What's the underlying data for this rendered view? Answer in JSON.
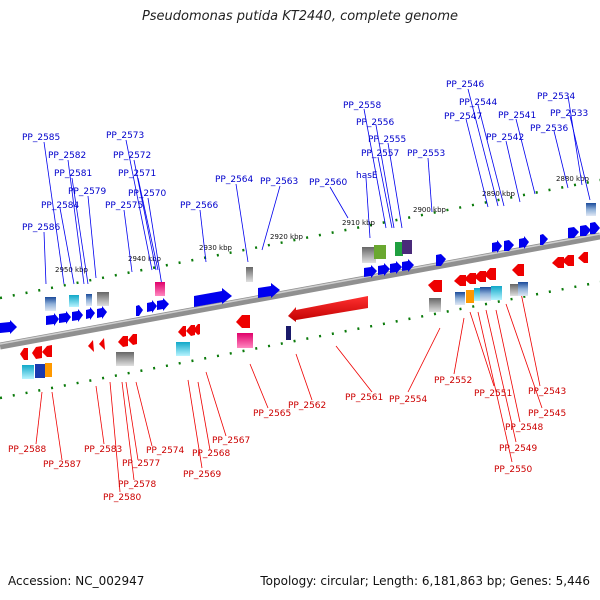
{
  "title": "Pseudomonas putida KT2440, complete genome",
  "footer": {
    "accession": "Accession: NC_002947",
    "topology": "Topology: circular; Length: 6,181,863 bp; Genes: 5,446"
  },
  "colors": {
    "forward_strand": "#0000ee",
    "reverse_strand": "#ee0000",
    "axis": "#888888",
    "tick": "#0a7a0a"
  },
  "scale": {
    "unit": "kbp",
    "labels": [
      "2880 kbp",
      "2890 kbp",
      "2900 kbp",
      "2910 kbp",
      "2920 kbp",
      "2930 kbp",
      "2940 kbp",
      "2950 kbp"
    ]
  },
  "forward_labels": [
    "PP_2534",
    "PP_2533",
    "PP_2536",
    "PP_2546",
    "PP_2544",
    "PP_2547",
    "PP_2541",
    "PP_2542",
    "PP_2558",
    "PP_2556",
    "PP_2555",
    "PP_2557",
    "PP_2553",
    "hasE",
    "PP_2560",
    "PP_2563",
    "PP_2564",
    "PP_2566",
    "PP_2573",
    "PP_2572",
    "PP_2571",
    "PP_2570",
    "PP_2575",
    "PP_2585",
    "PP_2582",
    "PP_2581",
    "PP_2579",
    "PP_2584",
    "PP_2586"
  ],
  "reverse_labels": [
    "PP_2543",
    "PP_2545",
    "PP_2548",
    "PP_2549",
    "PP_2550",
    "PP_2551",
    "PP_2552",
    "PP_2554",
    "PP_2561",
    "PP_2562",
    "PP_2565",
    "PP_2567",
    "PP_2568",
    "PP_2569",
    "PP_2574",
    "PP_2577",
    "PP_2578",
    "PP_2580",
    "PP_2583",
    "PP_2587",
    "PP_2588"
  ]
}
